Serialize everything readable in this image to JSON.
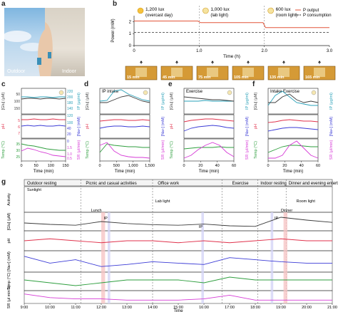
{
  "panel_labels": {
    "a": "a",
    "b": "b",
    "c": "c",
    "d": "d",
    "e": "e",
    "f": "f",
    "g": "g"
  },
  "a": {
    "outdoor": "Outdoor",
    "indoor": "Indoor"
  },
  "b": {
    "ylabel": "Power (mW)",
    "xlabel": "Time (h)",
    "xticks": [
      "0",
      "1.0",
      "2.0",
      "3.0"
    ],
    "yticks": [
      "0",
      "1",
      "2"
    ],
    "conditions": [
      {
        "lux": "1,200 lux",
        "desc": "(overcast day)"
      },
      {
        "lux": "1,000 lux",
        "desc": "(lab light)"
      },
      {
        "lux": "600 lux",
        "desc": "(room light)"
      }
    ],
    "legend": {
      "output": "P",
      "output_sub": "output",
      "consumption": "P",
      "consumption_sub": "consumption"
    },
    "thumbs": [
      "15 min",
      "45 min",
      "75 min",
      "105 min",
      "135 min",
      "165 min"
    ]
  },
  "small_panels": {
    "c": {
      "annot": "",
      "xlabel": "Time (min)",
      "xticks": [
        "0",
        "50",
        "100",
        "150"
      ]
    },
    "d": {
      "annot": "IP intake",
      "xlabel": "Time (min)",
      "xticks": [
        "0",
        "500",
        "1,000",
        "1,500"
      ]
    },
    "e": {
      "annot": "Exercise",
      "xlabel": "Time (min)",
      "xticks": [
        "0",
        "20",
        "40",
        "60"
      ]
    },
    "f": {
      "annot": "Intake   Exercise",
      "xlabel": "Time (min)",
      "xticks": [
        "0",
        "20",
        "40",
        "60"
      ]
    }
  },
  "left_axes": {
    "glu": "[Glu] (μM)",
    "ph": "pH",
    "temp": "Temp (°C)"
  },
  "right_axes": {
    "ip": "IP (μg/ml)",
    "na": "[Na+] (mM)",
    "sr": "SR (μl/min)"
  },
  "c_ticks": {
    "left": [
      "50",
      "100",
      "150",
      "5",
      "6",
      "7",
      "35",
      "30",
      "25"
    ],
    "right": [
      "220",
      "200",
      "180",
      "140",
      "120",
      "100",
      "40",
      "20",
      "0",
      "1.5",
      "1.0",
      "0.5"
    ]
  },
  "g": {
    "activities": [
      "Outdoor resting",
      "Picnic and casual activities",
      "Office work",
      "Exercise",
      "Indoor resting",
      "Dinner and evening entertainment"
    ],
    "annotations": [
      "Sunlight",
      "Lunch",
      "IP",
      "Lab light",
      "IP",
      "Dinner",
      "IP",
      "Room light"
    ],
    "rows": [
      "Activity",
      "[Glu] (μM)",
      "pH",
      "[Na+] (mM)",
      "Temp (°C)",
      "SR (μl min-1)"
    ],
    "xticks": [
      "9:00",
      "10:00",
      "11:00",
      "12:00",
      "13:00",
      "14:00",
      "15:00",
      "16:00",
      "17:00",
      "18:00",
      "19:00",
      "20:00",
      "21:00"
    ],
    "xlabel": "Time"
  },
  "colors": {
    "output": "#e2553a",
    "consumption": "#333333",
    "glu": "#3b3b3b",
    "ip": "#2aa0b8",
    "ph": "#e0314b",
    "na": "#3b3bd6",
    "temp": "#2e9e3e",
    "sr": "#d63bd6"
  },
  "chart_data": [
    {
      "type": "line",
      "panel": "b",
      "xlabel": "Time (h)",
      "ylabel": "Power (mW)",
      "ylim": [
        0,
        2.5
      ],
      "series": [
        {
          "name": "P output",
          "x": [
            0,
            0.98,
            1.02,
            1.98,
            2.02,
            3.0
          ],
          "values": [
            2.05,
            2.05,
            1.92,
            1.92,
            1.5,
            1.5
          ]
        },
        {
          "name": "P consumption",
          "x": [
            0,
            3.0
          ],
          "values": [
            1.1,
            1.1
          ]
        }
      ]
    },
    {
      "type": "line",
      "panel": "g",
      "xlabel": "Time",
      "x": [
        "9:00",
        "10:00",
        "11:00",
        "12:00",
        "13:00",
        "14:00",
        "15:00",
        "16:00",
        "17:00",
        "18:00",
        "19:00",
        "20:00",
        "21:00"
      ],
      "series": [
        {
          "name": "[Glu]",
          "values": [
            100,
            95,
            92,
            105,
            98,
            94,
            92,
            96,
            90,
            88,
            120,
            110,
            102
          ]
        },
        {
          "name": "pH",
          "values": [
            6.2,
            6.3,
            6.2,
            6.1,
            6.2,
            6.2,
            6.1,
            6.2,
            6.1,
            6.2,
            6.3,
            6.2,
            6.2
          ]
        },
        {
          "name": "[Na+]",
          "values": [
            60,
            50,
            55,
            45,
            48,
            52,
            50,
            48,
            58,
            55,
            52,
            50,
            50
          ]
        },
        {
          "name": "Temp",
          "values": [
            32,
            31,
            30,
            31,
            32,
            32,
            32,
            31,
            33,
            32,
            32,
            32,
            32
          ]
        },
        {
          "name": "SR",
          "values": [
            0.6,
            0.3,
            0.2,
            0.2,
            0.1,
            0.1,
            0.1,
            0.2,
            0.5,
            0.1,
            0.1,
            0.1,
            0.1
          ]
        }
      ]
    }
  ]
}
